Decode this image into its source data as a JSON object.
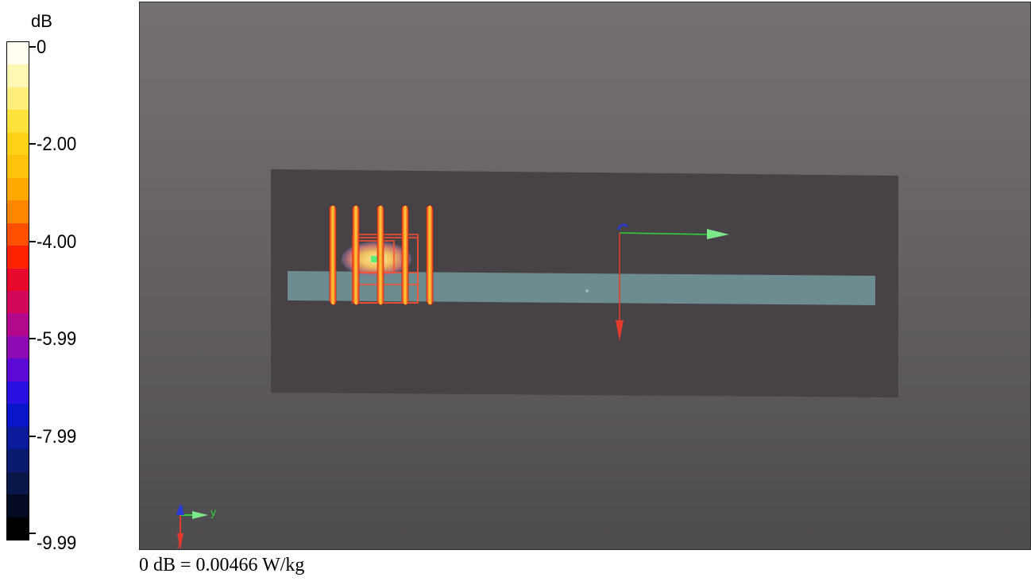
{
  "legend": {
    "unit": "dB",
    "ticks": [
      "0",
      "-2.00",
      "-4.00",
      "-5.99",
      "-7.99",
      "-9.99"
    ],
    "colors": [
      "#fffef0",
      "#fff7b3",
      "#ffef7a",
      "#ffe23c",
      "#ffd217",
      "#ffc20a",
      "#ffa800",
      "#ff8600",
      "#ff5000",
      "#ff2200",
      "#e80a2a",
      "#d4085a",
      "#b4088c",
      "#8c0ab4",
      "#5a0ad4",
      "#2810e0",
      "#0a14c8",
      "#0a1a9a",
      "#0a1a6e",
      "#081648",
      "#040a22",
      "#000000"
    ]
  },
  "viewport": {
    "axis_triad": {
      "x": "x",
      "y": "y",
      "z": "z"
    },
    "colors": {
      "plane": "#474246",
      "phantom": "#6d8c8f",
      "hotspot": "#ffd866",
      "probe_lines": "#ff5030",
      "x_axis": "#e23b2e",
      "y_axis": "#2fd13a",
      "z_axis": "#2a3ad8"
    }
  },
  "caption": "0 dB = 0.00466 W/kg"
}
